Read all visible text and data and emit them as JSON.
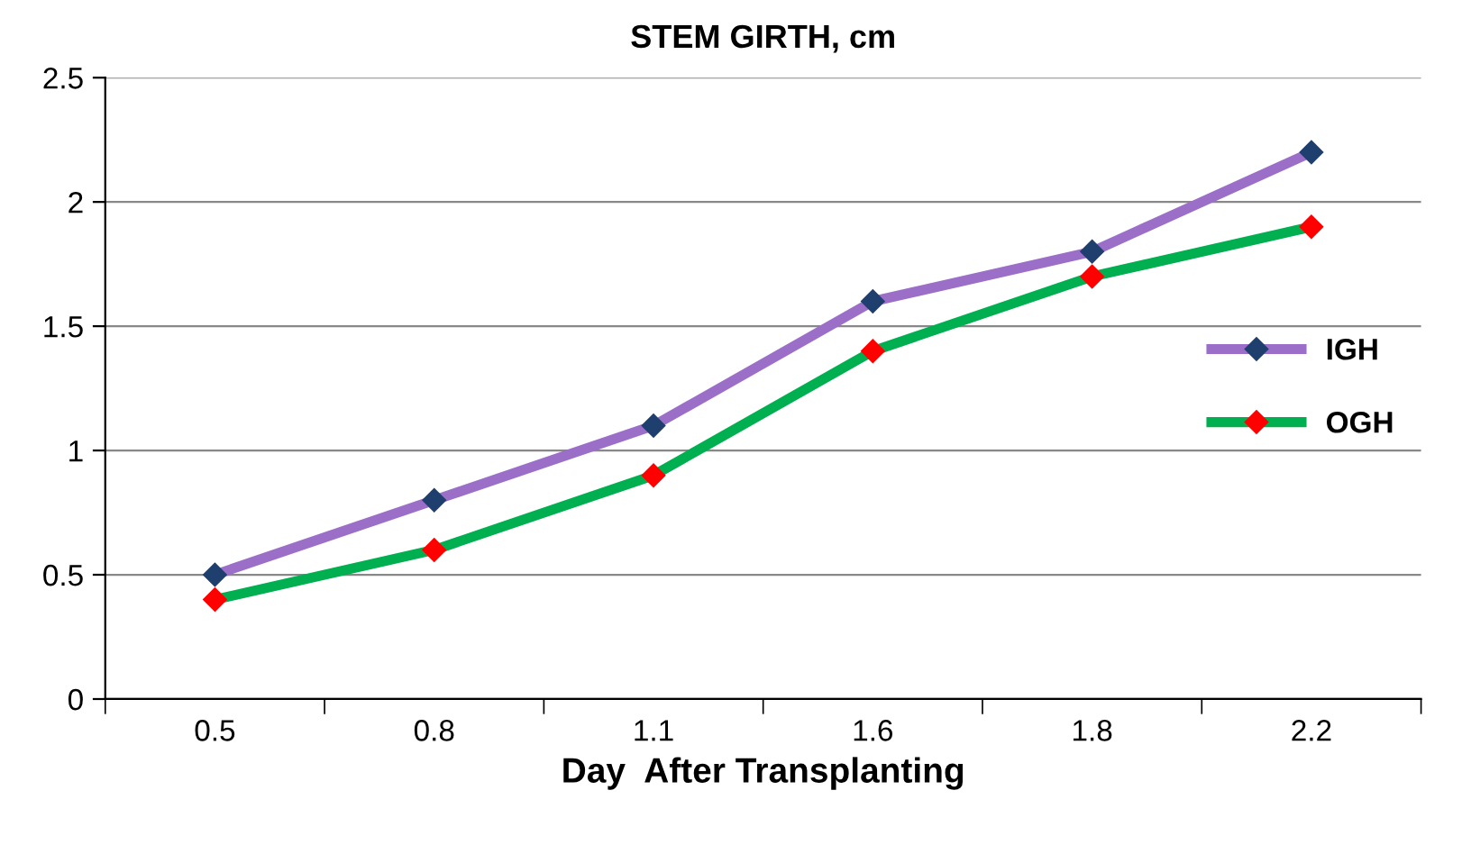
{
  "chart_data": {
    "type": "line",
    "title": "STEM GIRTH, cm",
    "xlabel": "Day  After Transplanting",
    "categories": [
      "0.5",
      "0.8",
      "1.1",
      "1.6",
      "1.8",
      "2.2"
    ],
    "series": [
      {
        "name": "IGH",
        "color": "#9b6fc8",
        "values": [
          0.5,
          0.8,
          1.1,
          1.6,
          1.8,
          2.2
        ]
      },
      {
        "name": "OGH",
        "color": "#00b050",
        "values": [
          0.4,
          0.6,
          0.9,
          1.4,
          1.7,
          1.9
        ]
      }
    ],
    "ylim": [
      0,
      2.5
    ],
    "yticks": [
      0,
      0.5,
      1,
      1.5,
      2,
      2.5
    ],
    "grid": "y",
    "legend": "right",
    "marker": "diamond",
    "line_style": "solid"
  }
}
